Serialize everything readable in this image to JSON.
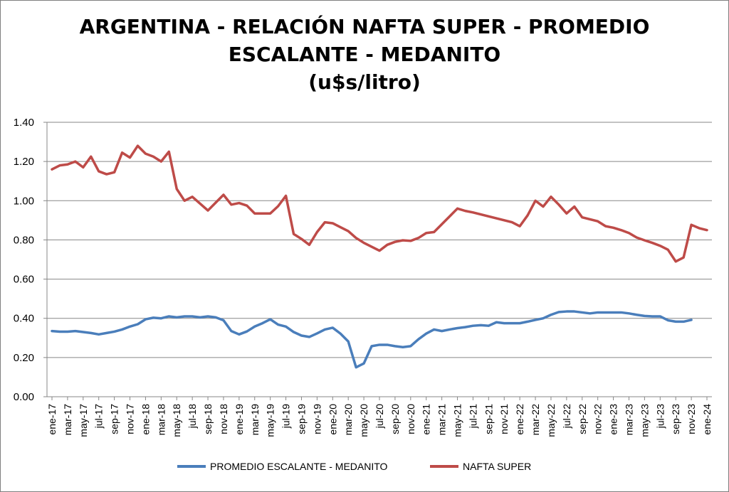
{
  "chart_data": {
    "type": "line",
    "title_lines": [
      "ARGENTINA - RELACIÓN NAFTA SUPER - PROMEDIO",
      "ESCALANTE - MEDANITO",
      "(u$s/litro)"
    ],
    "xlabel": "",
    "ylabel": "",
    "ylim": [
      0,
      1.4
    ],
    "yticks": [
      "0.00",
      "0.20",
      "0.40",
      "0.60",
      "0.80",
      "1.00",
      "1.20",
      "1.40"
    ],
    "ytick_values": [
      0,
      0.2,
      0.4,
      0.6,
      0.8,
      1.0,
      1.2,
      1.4
    ],
    "grid": true,
    "legend_position": "bottom",
    "categories": [
      "ene-17",
      "feb-17",
      "mar-17",
      "abr-17",
      "may-17",
      "jun-17",
      "jul-17",
      "ago-17",
      "sep-17",
      "oct-17",
      "nov-17",
      "dic-17",
      "ene-18",
      "feb-18",
      "mar-18",
      "abr-18",
      "may-18",
      "jun-18",
      "jul-18",
      "ago-18",
      "sep-18",
      "oct-18",
      "nov-18",
      "dic-18",
      "ene-19",
      "feb-19",
      "mar-19",
      "abr-19",
      "may-19",
      "jun-19",
      "jul-19",
      "ago-19",
      "sep-19",
      "oct-19",
      "nov-19",
      "dic-19",
      "ene-20",
      "feb-20",
      "mar-20",
      "abr-20",
      "may-20",
      "jun-20",
      "jul-20",
      "ago-20",
      "sep-20",
      "oct-20",
      "nov-20",
      "dic-20",
      "ene-21",
      "feb-21",
      "mar-21",
      "abr-21",
      "may-21",
      "jun-21",
      "jul-21",
      "ago-21",
      "sep-21",
      "oct-21",
      "nov-21",
      "dic-21",
      "ene-22",
      "feb-22",
      "mar-22",
      "abr-22",
      "may-22",
      "jun-22",
      "jul-22",
      "ago-22",
      "sep-22",
      "oct-22",
      "nov-22",
      "dic-22",
      "ene-23",
      "feb-23",
      "mar-23",
      "abr-23",
      "may-23",
      "jun-23",
      "jul-23",
      "ago-23",
      "sep-23",
      "oct-23",
      "nov-23",
      "dic-23",
      "ene-24"
    ],
    "xtick_labels": [
      "ene-17",
      "mar-17",
      "may-17",
      "jul-17",
      "sep-17",
      "nov-17",
      "ene-18",
      "mar-18",
      "may-18",
      "jul-18",
      "sep-18",
      "nov-18",
      "ene-19",
      "mar-19",
      "may-19",
      "jul-19",
      "sep-19",
      "nov-19",
      "ene-20",
      "mar-20",
      "may-20",
      "jul-20",
      "sep-20",
      "nov-20",
      "ene-21",
      "mar-21",
      "may-21",
      "jul-21",
      "sep-21",
      "nov-21",
      "ene-22",
      "mar-22",
      "may-22",
      "jul-22",
      "sep-22",
      "nov-22",
      "ene-23",
      "mar-23",
      "may-23",
      "jul-23",
      "sep-23",
      "nov-23",
      "ene-24"
    ],
    "series": [
      {
        "name": "PROMEDIO ESCALANTE - MEDANITO",
        "color": "#4a7ebb",
        "values": [
          0.335,
          0.332,
          0.332,
          0.335,
          0.33,
          0.325,
          0.318,
          0.325,
          0.332,
          0.343,
          0.358,
          0.37,
          0.395,
          0.403,
          0.4,
          0.41,
          0.405,
          0.41,
          0.41,
          0.405,
          0.41,
          0.405,
          0.39,
          0.335,
          0.318,
          0.333,
          0.358,
          0.375,
          0.395,
          0.368,
          0.358,
          0.33,
          0.312,
          0.305,
          0.323,
          0.343,
          0.352,
          0.322,
          0.282,
          0.15,
          0.17,
          0.258,
          0.265,
          0.265,
          0.258,
          0.253,
          0.258,
          0.293,
          0.322,
          0.343,
          0.335,
          0.343,
          0.35,
          0.355,
          0.362,
          0.365,
          0.362,
          0.38,
          0.375,
          0.375,
          0.375,
          0.383,
          0.392,
          0.4,
          0.418,
          0.432,
          0.435,
          0.435,
          0.43,
          0.425,
          0.43,
          0.43,
          0.43,
          0.43,
          0.425,
          0.418,
          0.412,
          0.41,
          0.41,
          0.39,
          0.383,
          0.383,
          0.392,
          null,
          null
        ]
      },
      {
        "name": "NAFTA SUPER",
        "color": "#be4b48",
        "values": [
          1.16,
          1.18,
          1.185,
          1.2,
          1.17,
          1.225,
          1.15,
          1.135,
          1.145,
          1.245,
          1.22,
          1.28,
          1.24,
          1.225,
          1.2,
          1.25,
          1.06,
          1.0,
          1.02,
          0.985,
          0.95,
          0.99,
          1.03,
          0.98,
          0.988,
          0.975,
          0.935,
          0.935,
          0.935,
          0.972,
          1.025,
          0.83,
          0.805,
          0.775,
          0.84,
          0.89,
          0.885,
          0.865,
          0.845,
          0.81,
          0.785,
          0.765,
          0.745,
          0.775,
          0.79,
          0.798,
          0.795,
          0.81,
          0.835,
          0.84,
          0.88,
          0.92,
          0.96,
          0.948,
          0.94,
          0.93,
          0.92,
          0.91,
          0.9,
          0.89,
          0.87,
          0.925,
          1.0,
          0.97,
          1.02,
          0.98,
          0.935,
          0.97,
          0.915,
          0.905,
          0.895,
          0.87,
          0.862,
          0.85,
          0.835,
          0.812,
          0.798,
          0.785,
          0.77,
          0.75,
          0.69,
          0.71,
          0.877,
          0.86,
          0.85
        ]
      }
    ]
  }
}
